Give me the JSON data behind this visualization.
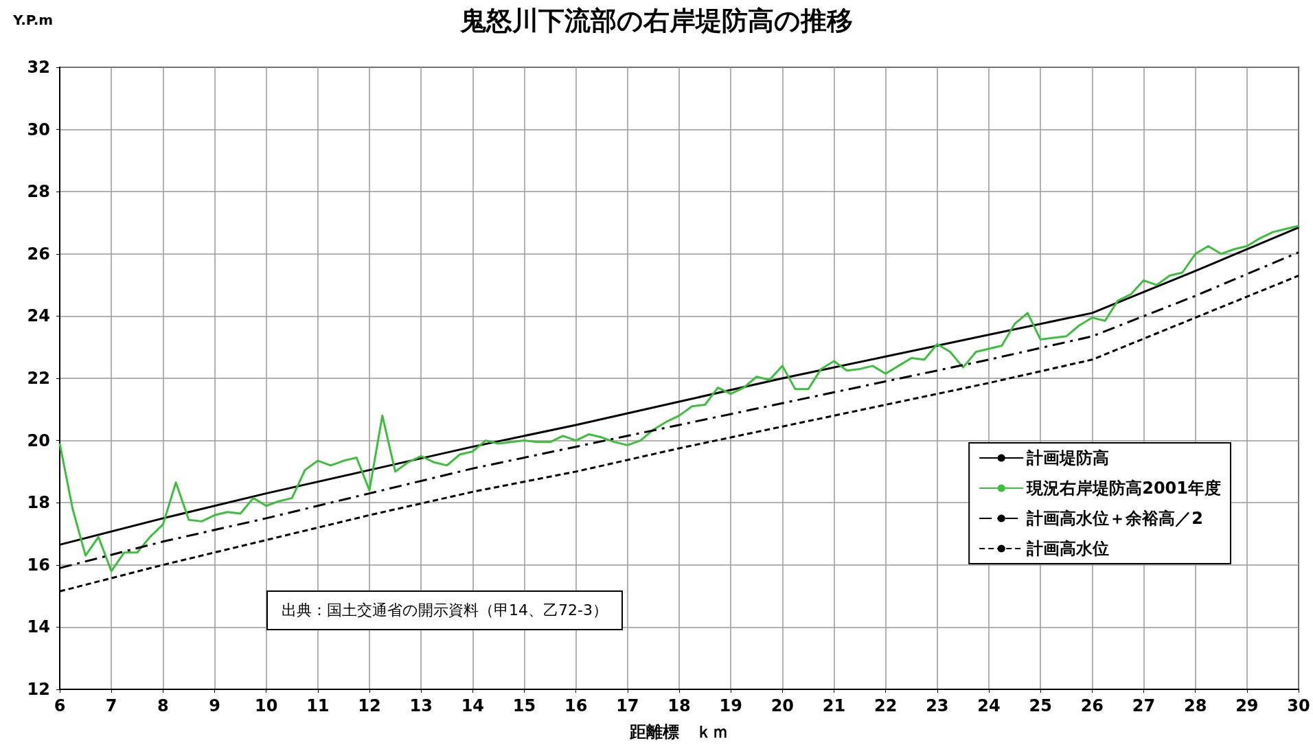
{
  "chart_data": {
    "type": "line",
    "title": "鬼怒川下流部の右岸堤防高の推移",
    "xlabel": "距離標　ｋｍ",
    "ylabel": "Y.P.m",
    "annotations": [
      "出典：国土交通省の開示資料（甲14、乙72-3）"
    ],
    "xlim": [
      6,
      30
    ],
    "xticks": [
      6,
      7,
      8,
      9,
      10,
      11,
      12,
      13,
      14,
      15,
      16,
      17,
      18,
      19,
      20,
      21,
      22,
      23,
      24,
      25,
      26,
      27,
      28,
      29,
      30
    ],
    "ylim": [
      12,
      32
    ],
    "yticks": [
      12,
      14,
      16,
      18,
      20,
      22,
      24,
      26,
      28,
      30,
      32
    ],
    "grid": true,
    "legend": "right",
    "marker": "none",
    "series": [
      {
        "name": "計画堤防高",
        "color": "#000000",
        "line_style": "solid",
        "x": [
          6,
          8,
          10,
          12,
          14,
          16,
          18,
          20,
          22,
          24,
          26,
          28,
          30
        ],
        "values": [
          16.65,
          17.5,
          18.3,
          19.05,
          19.8,
          20.5,
          21.25,
          22.0,
          22.7,
          23.4,
          24.1,
          25.45,
          26.85
        ]
      },
      {
        "name": "現況右岸堤防高2001年度",
        "color": "#3cbf3c",
        "line_style": "solid",
        "x": [
          6,
          6.25,
          6.5,
          6.75,
          7,
          7.25,
          7.5,
          7.75,
          8,
          8.25,
          8.5,
          8.75,
          9,
          9.25,
          9.5,
          9.75,
          10,
          10.25,
          10.5,
          10.75,
          11,
          11.25,
          11.5,
          11.75,
          12,
          12.25,
          12.5,
          12.75,
          13,
          13.25,
          13.5,
          13.75,
          14,
          14.25,
          14.5,
          15,
          15.25,
          15.5,
          15.75,
          16,
          16.25,
          16.5,
          16.75,
          17,
          17.25,
          17.5,
          17.75,
          18,
          18.25,
          18.5,
          18.75,
          19,
          19.25,
          19.5,
          19.75,
          20,
          20.25,
          20.5,
          20.75,
          21,
          21.25,
          21.5,
          21.75,
          22,
          22.25,
          22.5,
          22.75,
          23,
          23.25,
          23.5,
          23.75,
          24,
          24.25,
          24.5,
          24.75,
          25,
          25.25,
          25.5,
          25.75,
          26,
          26.25,
          26.5,
          26.75,
          27,
          27.25,
          27.5,
          27.75,
          28,
          28.25,
          28.5,
          28.75,
          29,
          29.25,
          29.5,
          29.75,
          30
        ],
        "values": [
          19.9,
          17.8,
          16.3,
          16.9,
          15.8,
          16.4,
          16.4,
          16.9,
          17.3,
          18.65,
          17.45,
          17.4,
          17.6,
          17.7,
          17.65,
          18.15,
          17.9,
          18.05,
          18.15,
          19.05,
          19.35,
          19.2,
          19.35,
          19.45,
          18.4,
          20.8,
          19.0,
          19.3,
          19.5,
          19.3,
          19.2,
          19.55,
          19.65,
          20.0,
          19.9,
          20.0,
          19.95,
          19.95,
          20.15,
          20.0,
          20.2,
          20.1,
          19.95,
          19.85,
          20.0,
          20.35,
          20.6,
          20.8,
          21.1,
          21.15,
          21.7,
          21.5,
          21.7,
          22.05,
          21.95,
          22.4,
          21.65,
          21.65,
          22.3,
          22.55,
          22.25,
          22.3,
          22.4,
          22.15,
          22.4,
          22.65,
          22.6,
          23.1,
          22.85,
          22.35,
          22.85,
          22.95,
          23.05,
          23.75,
          24.1,
          23.25,
          23.3,
          23.35,
          23.7,
          23.95,
          23.85,
          24.5,
          24.7,
          25.15,
          25.0,
          25.3,
          25.4,
          26.0,
          26.25,
          26.0,
          26.15,
          26.25,
          26.5,
          26.7,
          26.8,
          26.9
        ]
      },
      {
        "name": "計画高水位＋余裕高／2",
        "color": "#000000",
        "line_style": "dashdot",
        "x": [
          6,
          8,
          10,
          12,
          14,
          16,
          18,
          20,
          22,
          24,
          26,
          28,
          30
        ],
        "values": [
          15.9,
          16.75,
          17.5,
          18.3,
          19.1,
          19.8,
          20.5,
          21.2,
          21.9,
          22.6,
          23.35,
          24.65,
          26.05
        ]
      },
      {
        "name": "計画高水位",
        "color": "#000000",
        "line_style": "dashed",
        "x": [
          6,
          8,
          10,
          12,
          14,
          16,
          18,
          20,
          22,
          24,
          26,
          28,
          30
        ],
        "values": [
          15.15,
          16.0,
          16.8,
          17.6,
          18.35,
          19.0,
          19.75,
          20.45,
          21.15,
          21.85,
          22.6,
          23.95,
          25.3
        ]
      }
    ]
  }
}
